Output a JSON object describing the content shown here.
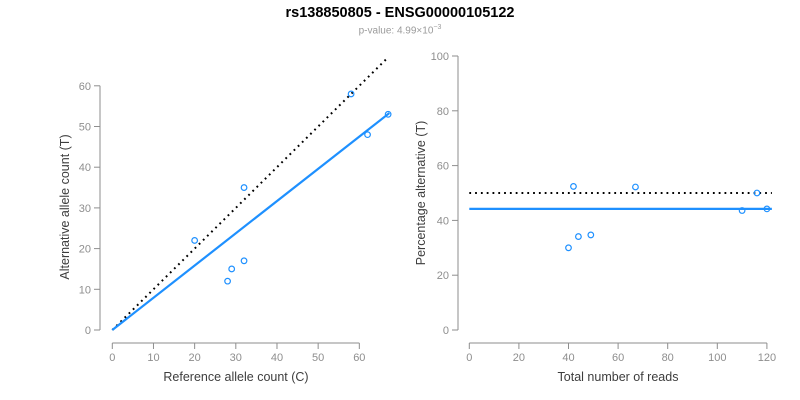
{
  "header": {
    "title": "rs138850805 - ENSG00000105122",
    "subtitle_prefix": "p-value: 4.99×10",
    "subtitle_exponent": "−3"
  },
  "colors": {
    "point_blue": "#1E90FF",
    "fit_blue": "#1E90FF",
    "identity_black": "#000000",
    "axis_gray": "#8e8e8e",
    "tick_label_gray": "#8e8e8e",
    "axis_title_dark": "#3d3d3d",
    "subtitle_gray": "#9b9b9b"
  },
  "chart_data": [
    {
      "type": "scatter",
      "title": "",
      "xlabel": "Reference allele count (C)",
      "ylabel": "Alternative allele count (T)",
      "xlim": [
        0,
        67
      ],
      "ylim": [
        0,
        67
      ],
      "xticks": [
        0,
        10,
        20,
        30,
        40,
        50,
        60
      ],
      "yticks": [
        0,
        10,
        20,
        30,
        40,
        50,
        60
      ],
      "grid": false,
      "points": [
        [
          20,
          22
        ],
        [
          28,
          12
        ],
        [
          29,
          15
        ],
        [
          32,
          17
        ],
        [
          32,
          35
        ],
        [
          58,
          58
        ],
        [
          62,
          48
        ],
        [
          67,
          53
        ]
      ],
      "lines": [
        {
          "name": "identity-line",
          "style": "dotted",
          "color": "#000000",
          "x1": 0,
          "y1": 0,
          "x2": 67,
          "y2": 67
        },
        {
          "name": "fit-line",
          "style": "solid",
          "color": "#1E90FF",
          "x1": 0,
          "y1": 0,
          "x2": 67.3,
          "y2": 53.3
        }
      ]
    },
    {
      "type": "scatter",
      "title": "",
      "xlabel": "Total number of reads",
      "ylabel": "Percentage alternative (T)",
      "xlim": [
        0,
        122
      ],
      "ylim": [
        0,
        100
      ],
      "xticks": [
        0,
        20,
        40,
        60,
        80,
        100,
        120
      ],
      "yticks": [
        0,
        20,
        40,
        60,
        80,
        100
      ],
      "grid": false,
      "points": [
        [
          40,
          30
        ],
        [
          42,
          52.4
        ],
        [
          44,
          34.1
        ],
        [
          49,
          34.7
        ],
        [
          67,
          52.2
        ],
        [
          110,
          43.6
        ],
        [
          116,
          50
        ],
        [
          120,
          44.2
        ]
      ],
      "lines": [
        {
          "name": "identity-line",
          "style": "dotted",
          "color": "#000000",
          "x1": 0,
          "y1": 50,
          "x2": 122,
          "y2": 50
        },
        {
          "name": "fit-line",
          "style": "solid",
          "color": "#1E90FF",
          "x1": 0,
          "y1": 44.2,
          "x2": 122,
          "y2": 44.2
        }
      ]
    }
  ]
}
